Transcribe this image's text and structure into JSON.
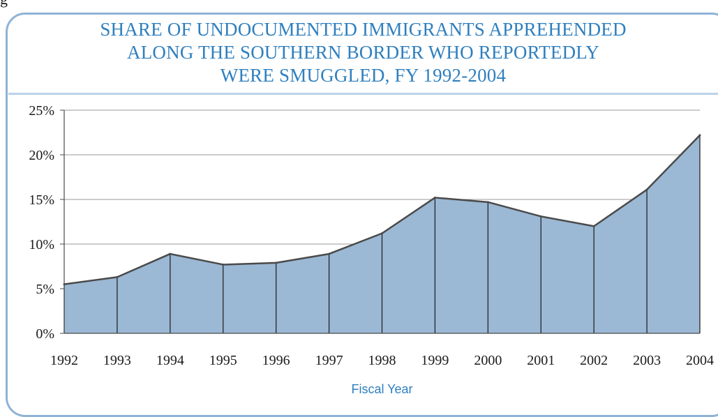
{
  "figure_label": "g",
  "chart_data": {
    "type": "area",
    "title_lines": [
      "SHARE OF UNDOCUMENTED IMMIGRANTS APPREHENDED",
      "ALONG THE SOUTHERN BORDER WHO REPORTEDLY",
      "WERE SMUGGLED, FY 1992-2004"
    ],
    "xlabel": "Fiscal Year",
    "ylabel": "",
    "categories": [
      "1992",
      "1993",
      "1994",
      "1995",
      "1996",
      "1997",
      "1998",
      "1999",
      "2000",
      "2001",
      "2002",
      "2003",
      "2004"
    ],
    "values": [
      5.5,
      6.3,
      8.9,
      7.7,
      7.9,
      8.9,
      11.2,
      15.2,
      14.7,
      13.1,
      12.0,
      16.1,
      22.2
    ],
    "ylim": [
      0,
      25
    ],
    "yticks": [
      0,
      5,
      10,
      15,
      20,
      25
    ],
    "ytick_labels": [
      "0%",
      "5%",
      "10%",
      "15%",
      "20%",
      "25%"
    ],
    "grid": true,
    "fill_color": "#9bb8d4",
    "line_color": "#4a4a4a",
    "accent_color": "#2f7fbe"
  }
}
